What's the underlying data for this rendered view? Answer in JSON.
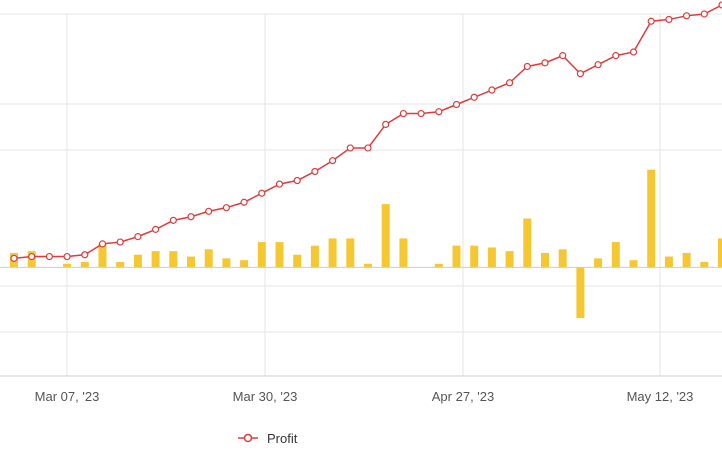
{
  "chart_data": {
    "type": "bar+line",
    "x_ticks": [
      "Mar 07, '23",
      "Mar 30, '23",
      "Apr 27, '23",
      "May 12, '23"
    ],
    "legend": {
      "items": [
        {
          "label": "Profit",
          "color": "#e03b3b"
        }
      ],
      "position": "bottom-center"
    },
    "bar_color": "#f5c832",
    "line_color": "#e03b3b",
    "grid": true,
    "bars": [
      0.8,
      0.9,
      0,
      0.2,
      0.3,
      1.3,
      0.3,
      0.7,
      0.9,
      0.9,
      0.6,
      1.0,
      0.5,
      0.4,
      1.4,
      1.4,
      0.7,
      1.2,
      1.6,
      1.6,
      0.2,
      3.5,
      1.6,
      0,
      0.2,
      1.2,
      1.2,
      1.1,
      0.9,
      2.7,
      0.8,
      1.0,
      -2.8,
      0.5,
      1.4,
      0.4,
      5.4,
      0.6,
      0.8,
      0.3,
      1.6
    ],
    "profit": [
      0.5,
      0.6,
      0.6,
      0.6,
      0.7,
      1.3,
      1.4,
      1.7,
      2.1,
      2.6,
      2.8,
      3.1,
      3.3,
      3.6,
      4.1,
      4.6,
      4.8,
      5.3,
      5.9,
      6.6,
      6.6,
      7.9,
      8.5,
      8.5,
      8.6,
      9.0,
      9.4,
      9.8,
      10.2,
      11.1,
      11.3,
      11.7,
      10.7,
      11.2,
      11.7,
      11.9,
      13.6,
      13.7,
      13.9,
      14.0,
      14.5
    ],
    "y_range": [
      -6,
      14
    ]
  }
}
